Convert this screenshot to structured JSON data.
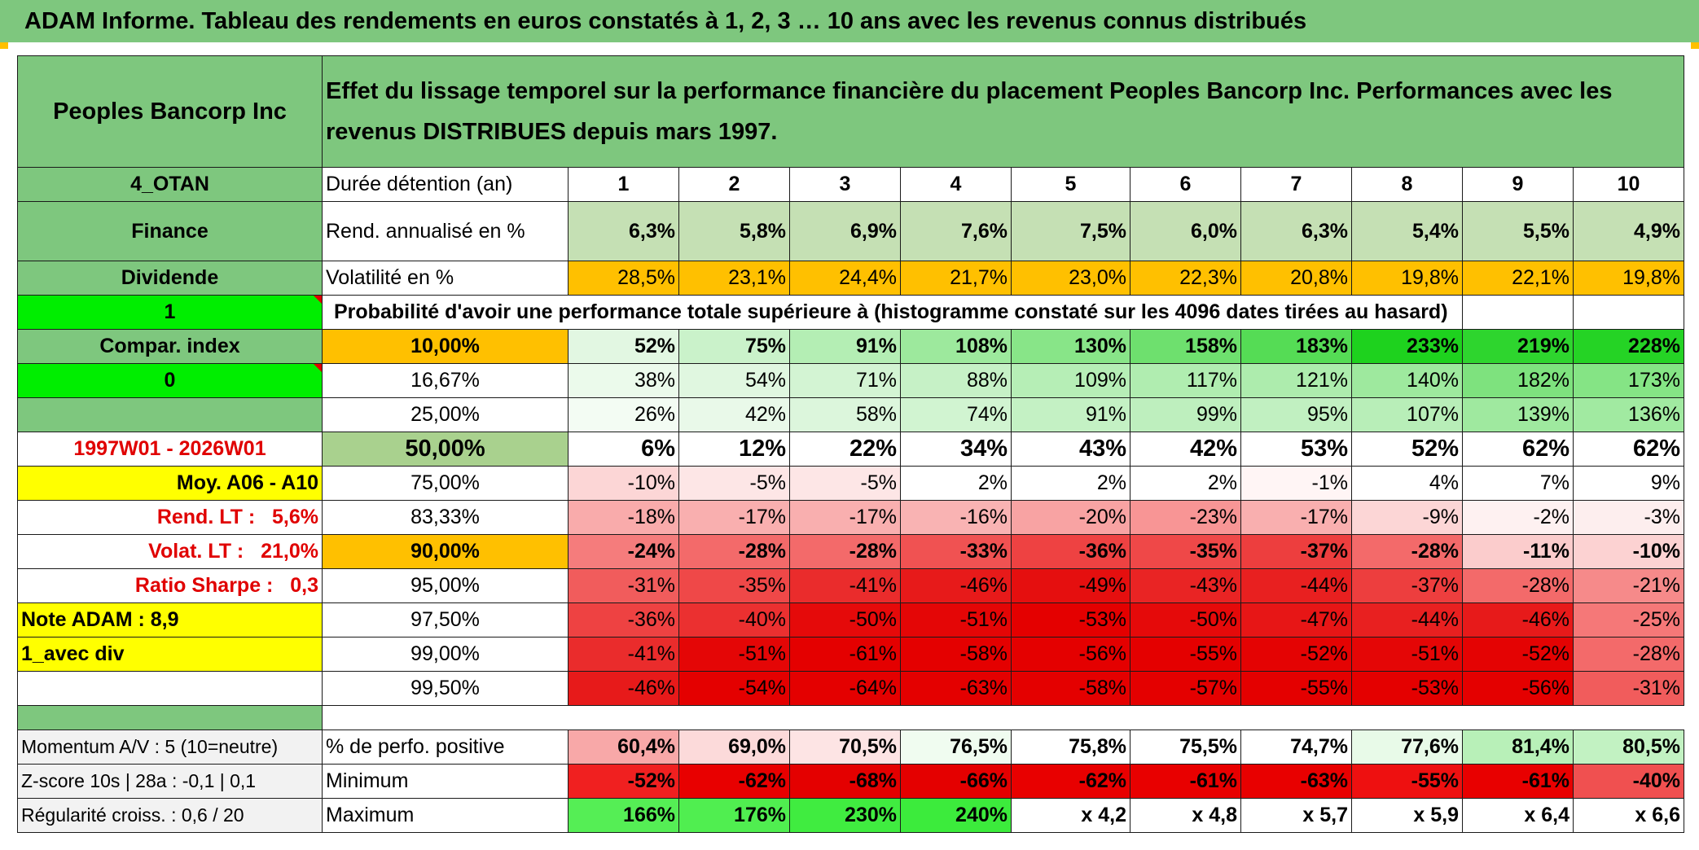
{
  "title": "ADAM Informe. Tableau des rendements en euros constatés à 1, 2, 3 … 10 ans avec les revenus connus distribués",
  "header": {
    "company": "Peoples Bancorp Inc",
    "description": "Effet du lissage temporel sur la performance financière du placement Peoples Bancorp Inc. Performances avec les revenus DISTRIBUES depuis mars 1997."
  },
  "left_panel": {
    "code": "4_OTAN",
    "sector": "Finance",
    "dividend": "Dividende",
    "value_1": "1",
    "compar_index": "Compar. index",
    "value_0": "0",
    "period": "1997W01 - 2026W01",
    "moy": "Moy. A06 - A10",
    "rend_lt_label": "Rend. LT :",
    "rend_lt_value": "5,6%",
    "volat_lt_label": "Volat. LT :",
    "volat_lt_value": "21,0%",
    "sharpe_label": "Ratio Sharpe :",
    "sharpe_value": "0,3",
    "note": "Note ADAM : 8,9",
    "avec_div": "1_avec div"
  },
  "durations": {
    "label": "Durée détention (an)",
    "values": [
      "1",
      "2",
      "3",
      "4",
      "5",
      "6",
      "7",
      "8",
      "9",
      "10"
    ]
  },
  "rend": {
    "label": "Rend. annualisé en %",
    "values": [
      "6,3%",
      "5,8%",
      "6,9%",
      "7,6%",
      "7,5%",
      "6,0%",
      "6,3%",
      "5,4%",
      "5,5%",
      "4,9%"
    ]
  },
  "volat": {
    "label": "Volatilité en %",
    "values": [
      "28,5%",
      "23,1%",
      "24,4%",
      "21,7%",
      "23,0%",
      "22,3%",
      "20,8%",
      "19,8%",
      "22,1%",
      "19,8%"
    ]
  },
  "proba_label": "Probabilité d'avoir une performance totale supérieure à (histogramme constaté sur les 4096 dates tirées au hasard)",
  "quantiles": [
    {
      "label": "10,00%",
      "values": [
        "52%",
        "75%",
        "91%",
        "108%",
        "130%",
        "158%",
        "183%",
        "233%",
        "219%",
        "228%"
      ],
      "colors": [
        "#e2f7e2",
        "#caf2ca",
        "#b4eeb4",
        "#9de99d",
        "#88e588",
        "#6ee06e",
        "#55dc55",
        "#1ed21e",
        "#2ed52e",
        "#25d325"
      ]
    },
    {
      "label": "16,67%",
      "values": [
        "38%",
        "54%",
        "71%",
        "88%",
        "109%",
        "117%",
        "121%",
        "140%",
        "182%",
        "173%"
      ],
      "colors": [
        "#ebfaeb",
        "#e0f7e0",
        "#d3f4d3",
        "#c6f1c6",
        "#b6eeb6",
        "#b0edb0",
        "#adecad",
        "#9ee99e",
        "#7ee27e",
        "#85e485"
      ]
    },
    {
      "label": "25,00%",
      "values": [
        "26%",
        "42%",
        "58%",
        "74%",
        "91%",
        "99%",
        "95%",
        "107%",
        "139%",
        "136%"
      ],
      "colors": [
        "#f3fcf3",
        "#e9f9e9",
        "#dcf6dc",
        "#d1f4d1",
        "#c4f1c4",
        "#beefbe",
        "#c1f0c1",
        "#b8eeb8",
        "#9fe99f",
        "#a1ea a1"
      ]
    },
    {
      "label": "50,00%",
      "values": [
        "6%",
        "12%",
        "22%",
        "34%",
        "43%",
        "42%",
        "53%",
        "52%",
        "62%",
        "62%"
      ],
      "colors": [
        "#ffffff",
        "#ffffff",
        "#ffffff",
        "#ffffff",
        "#ffffff",
        "#ffffff",
        "#ffffff",
        "#ffffff",
        "#ffffff",
        "#ffffff"
      ]
    },
    {
      "label": "75,00%",
      "values": [
        "-10%",
        "-5%",
        "-5%",
        "2%",
        "2%",
        "2%",
        "-1%",
        "4%",
        "7%",
        "9%"
      ],
      "colors": [
        "#fcd6d6",
        "#fde6e6",
        "#fde6e6",
        "#ffffff",
        "#ffffff",
        "#ffffff",
        "#fff5f5",
        "#ffffff",
        "#ffffff",
        "#ffffff"
      ]
    },
    {
      "label": "83,33%",
      "values": [
        "-18%",
        "-17%",
        "-17%",
        "-16%",
        "-20%",
        "-23%",
        "-17%",
        "-9%",
        "-2%",
        "-3%"
      ],
      "colors": [
        "#f9abab",
        "#f9afaf",
        "#f9afaf",
        "#f9b3b3",
        "#f8a3a3",
        "#f89595",
        "#f9afaf",
        "#fcd6d6",
        "#fef1f1",
        "#fdeeee"
      ]
    },
    {
      "label": "90,00%",
      "values": [
        "-24%",
        "-28%",
        "-28%",
        "-33%",
        "-36%",
        "-35%",
        "-37%",
        "-28%",
        "-11%",
        "-10%"
      ],
      "colors": [
        "#f57c7c",
        "#f36a6a",
        "#f36a6a",
        "#f05252",
        "#ee4242",
        "#ef4848",
        "#ed3e3e",
        "#f36a6a",
        "#fbcccc",
        "#fcd2d2"
      ]
    },
    {
      "label": "95,00%",
      "values": [
        "-31%",
        "-35%",
        "-41%",
        "-46%",
        "-49%",
        "-43%",
        "-44%",
        "-37%",
        "-28%",
        "-21%"
      ],
      "colors": [
        "#f15c5c",
        "#ef4848",
        "#ea2c2c",
        "#e71a1a",
        "#e50f0f",
        "#e92424",
        "#e82020",
        "#ed3e3e",
        "#f36a6a",
        "#f68a8a"
      ]
    },
    {
      "label": "97,50%",
      "values": [
        "-36%",
        "-40%",
        "-50%",
        "-51%",
        "-53%",
        "-50%",
        "-47%",
        "-44%",
        "-46%",
        "-25%"
      ],
      "colors": [
        "#ee4242",
        "#eb3030",
        "#e50a0a",
        "#e40606",
        "#e40000",
        "#e50a0a",
        "#e71616",
        "#e82020",
        "#e71a1a",
        "#f57878"
      ]
    },
    {
      "label": "99,00%",
      "values": [
        "-41%",
        "-51%",
        "-61%",
        "-58%",
        "-56%",
        "-55%",
        "-52%",
        "-51%",
        "-52%",
        "-28%"
      ],
      "colors": [
        "#ea2c2c",
        "#e40606",
        "#e40000",
        "#e40000",
        "#e40000",
        "#e40000",
        "#e40303",
        "#e40606",
        "#e40303",
        "#f36a6a"
      ]
    },
    {
      "label": "99,50%",
      "values": [
        "-46%",
        "-54%",
        "-64%",
        "-63%",
        "-58%",
        "-57%",
        "-55%",
        "-53%",
        "-56%",
        "-31%"
      ],
      "colors": [
        "#e71a1a",
        "#e40000",
        "#e40000",
        "#e40000",
        "#e40000",
        "#e40000",
        "#e40000",
        "#e40000",
        "#e40000",
        "#f15c5c"
      ]
    }
  ],
  "bottom": {
    "momentum": "Momentum A/V : 5 (10=neutre)",
    "zscore": "Z-score 10s | 28a : -0,1 | 0,1",
    "regularite": "Régularité croiss. : 0,6 / 20",
    "positive_label": "% de perfo. positive",
    "positive_values": [
      "60,4%",
      "69,0%",
      "70,5%",
      "76,5%",
      "75,8%",
      "75,5%",
      "74,7%",
      "77,6%",
      "81,4%",
      "80,5%"
    ],
    "positive_colors": [
      "#f8a8a8",
      "#fcdada",
      "#fde4e4",
      "#f0fcf0",
      "#ffffff",
      "#ffffff",
      "#ffffff",
      "#e8fae8",
      "#b8f0b8",
      "#c2f2c2"
    ],
    "minimum_label": "Minimum",
    "minimum_values": [
      "-52%",
      "-62%",
      "-68%",
      "-66%",
      "-62%",
      "-61%",
      "-63%",
      "-55%",
      "-61%",
      "-40%"
    ],
    "minimum_colors": [
      "#f02020",
      "#e80000",
      "#e40000",
      "#e40000",
      "#e80000",
      "#e80000",
      "#e80000",
      "#ee1010",
      "#e80000",
      "#f05050"
    ],
    "maximum_label": "Maximum",
    "maximum_values": [
      "166%",
      "176%",
      "230%",
      "240%",
      "x 4,2",
      "x 4,8",
      "x 5,7",
      "x 5,9",
      "x 6,4",
      "x 6,6"
    ],
    "maximum_colors": [
      "#55ee55",
      "#50ee50",
      "#40ec40",
      "#3ceb3c",
      "#ffffff",
      "#ffffff",
      "#ffffff",
      "#ffffff",
      "#ffffff",
      "#ffffff"
    ]
  }
}
